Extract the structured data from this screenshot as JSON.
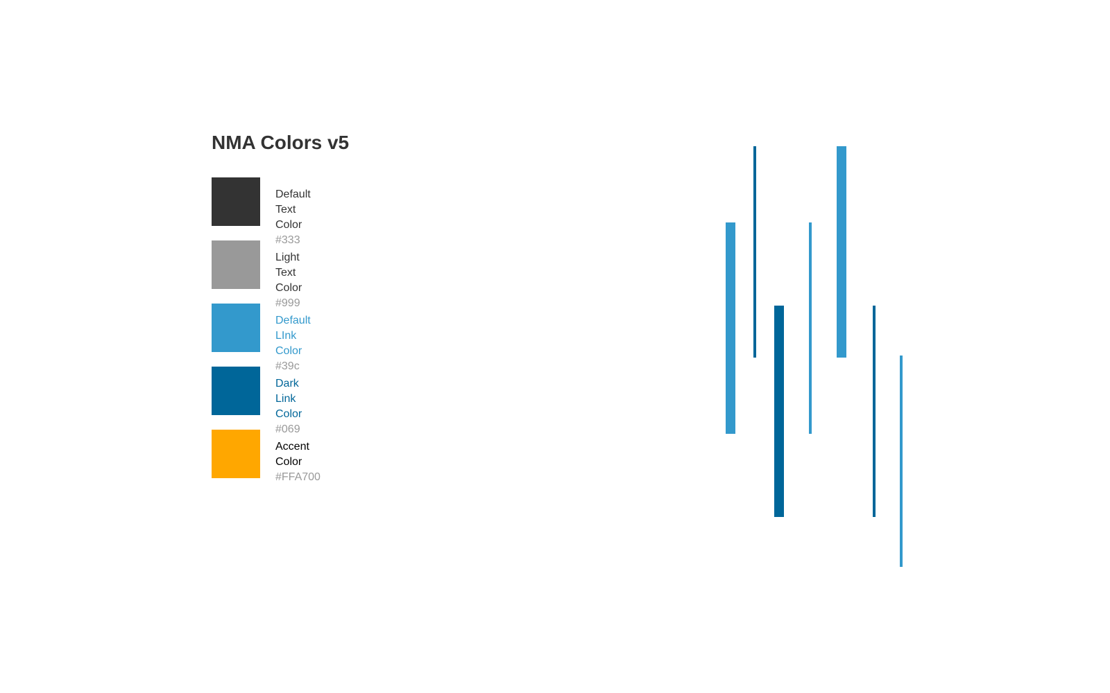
{
  "page": {
    "title": "NMA Colors v5"
  },
  "swatches": [
    {
      "name": "Default Text Color",
      "value": "#333",
      "swatch_color": "#333333",
      "label_color": "#333333"
    },
    {
      "name": "Light Text Color",
      "value": "#999",
      "swatch_color": "#999999",
      "label_color": "#333333"
    },
    {
      "name": "Default LInk Color",
      "value": "#39c",
      "swatch_color": "#3399cc",
      "label_color": "#3399cc"
    },
    {
      "name": "Dark Link Color",
      "value": "#069",
      "swatch_color": "#006699",
      "label_color": "#006699"
    },
    {
      "name": "Accent Color",
      "value": "#FFA700",
      "swatch_color": "#FFA700",
      "label_color": "#000000"
    }
  ],
  "decor_colors": {
    "light_blue": "#3399cc",
    "dark_blue": "#006699"
  }
}
